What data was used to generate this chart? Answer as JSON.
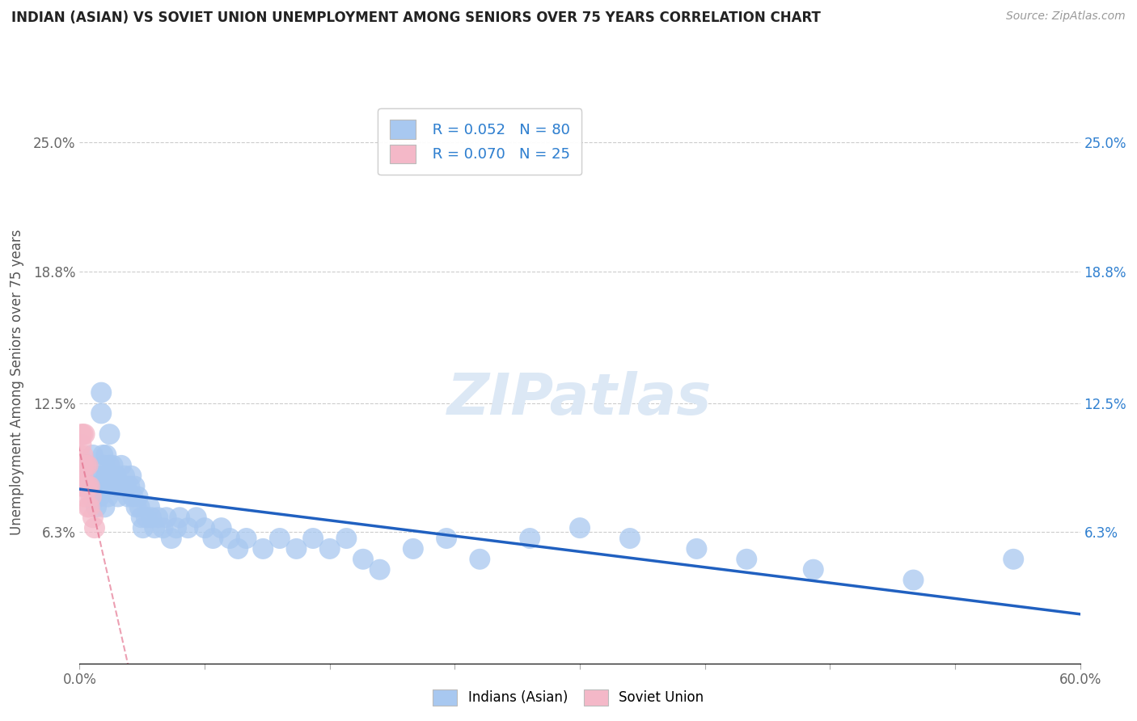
{
  "title": "INDIAN (ASIAN) VS SOVIET UNION UNEMPLOYMENT AMONG SENIORS OVER 75 YEARS CORRELATION CHART",
  "source": "Source: ZipAtlas.com",
  "ylabel": "Unemployment Among Seniors over 75 years",
  "xlim": [
    0.0,
    0.6
  ],
  "ylim": [
    0.0,
    0.27
  ],
  "yticks": [
    0.0,
    0.063,
    0.125,
    0.188,
    0.25
  ],
  "ytick_labels_left": [
    "",
    "6.3%",
    "12.5%",
    "18.8%",
    "25.0%"
  ],
  "ytick_labels_right": [
    "",
    "6.3%",
    "12.5%",
    "18.8%",
    "25.0%"
  ],
  "xtick_labels": [
    "0.0%",
    "",
    "",
    "",
    "",
    "",
    "",
    "",
    "60.0%"
  ],
  "legend_r1": "R = 0.052",
  "legend_n1": "N = 80",
  "legend_r2": "R = 0.070",
  "legend_n2": "N = 25",
  "color_indian": "#a8c8f0",
  "color_soviet": "#f4b8c8",
  "trendline_color_indian": "#2060c0",
  "trendline_color_soviet": "#e06080",
  "watermark": "ZIPatlas",
  "indian_x": [
    0.005,
    0.007,
    0.008,
    0.009,
    0.01,
    0.01,
    0.01,
    0.011,
    0.012,
    0.012,
    0.013,
    0.013,
    0.014,
    0.014,
    0.015,
    0.015,
    0.015,
    0.016,
    0.016,
    0.017,
    0.017,
    0.018,
    0.018,
    0.019,
    0.02,
    0.021,
    0.022,
    0.023,
    0.024,
    0.025,
    0.026,
    0.027,
    0.028,
    0.029,
    0.03,
    0.031,
    0.032,
    0.033,
    0.034,
    0.035,
    0.036,
    0.037,
    0.038,
    0.04,
    0.042,
    0.043,
    0.045,
    0.047,
    0.05,
    0.052,
    0.055,
    0.058,
    0.06,
    0.065,
    0.07,
    0.075,
    0.08,
    0.085,
    0.09,
    0.095,
    0.1,
    0.11,
    0.12,
    0.13,
    0.14,
    0.15,
    0.16,
    0.17,
    0.18,
    0.2,
    0.22,
    0.24,
    0.27,
    0.3,
    0.33,
    0.37,
    0.4,
    0.44,
    0.5,
    0.56
  ],
  "indian_y": [
    0.095,
    0.085,
    0.1,
    0.085,
    0.09,
    0.08,
    0.075,
    0.085,
    0.09,
    0.08,
    0.13,
    0.12,
    0.1,
    0.085,
    0.095,
    0.085,
    0.075,
    0.1,
    0.09,
    0.085,
    0.08,
    0.11,
    0.095,
    0.09,
    0.095,
    0.085,
    0.09,
    0.08,
    0.085,
    0.095,
    0.085,
    0.09,
    0.085,
    0.08,
    0.085,
    0.09,
    0.08,
    0.085,
    0.075,
    0.08,
    0.075,
    0.07,
    0.065,
    0.07,
    0.075,
    0.07,
    0.065,
    0.07,
    0.065,
    0.07,
    0.06,
    0.065,
    0.07,
    0.065,
    0.07,
    0.065,
    0.06,
    0.065,
    0.06,
    0.055,
    0.06,
    0.055,
    0.06,
    0.055,
    0.06,
    0.055,
    0.06,
    0.05,
    0.045,
    0.055,
    0.06,
    0.05,
    0.06,
    0.065,
    0.06,
    0.055,
    0.05,
    0.045,
    0.04,
    0.05
  ],
  "soviet_x": [
    0.0,
    0.0,
    0.001,
    0.001,
    0.001,
    0.001,
    0.002,
    0.002,
    0.002,
    0.002,
    0.002,
    0.003,
    0.003,
    0.003,
    0.003,
    0.004,
    0.004,
    0.005,
    0.005,
    0.005,
    0.006,
    0.006,
    0.007,
    0.008,
    0.009
  ],
  "soviet_y": [
    0.1,
    0.09,
    0.11,
    0.105,
    0.095,
    0.085,
    0.11,
    0.1,
    0.095,
    0.09,
    0.085,
    0.11,
    0.095,
    0.085,
    0.08,
    0.095,
    0.085,
    0.095,
    0.085,
    0.075,
    0.085,
    0.075,
    0.08,
    0.07,
    0.065
  ]
}
